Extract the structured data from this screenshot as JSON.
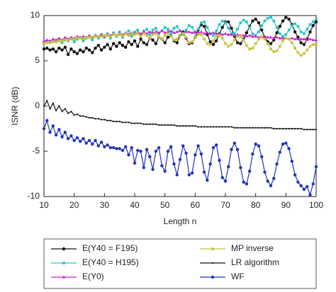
{
  "chart_data": {
    "type": "line",
    "xlabel": "Length n",
    "ylabel": "ISNR (dB)",
    "xlim": [
      10,
      100
    ],
    "ylim": [
      -10,
      10
    ],
    "xticks": [
      10,
      20,
      30,
      40,
      50,
      60,
      70,
      80,
      90,
      100
    ],
    "yticks": [
      -10,
      -5,
      0,
      5,
      10
    ],
    "legend": "bottom",
    "x": [
      10,
      11,
      12,
      13,
      14,
      15,
      16,
      17,
      18,
      19,
      20,
      21,
      22,
      23,
      24,
      25,
      26,
      27,
      28,
      29,
      30,
      31,
      32,
      33,
      34,
      35,
      36,
      37,
      38,
      39,
      40,
      41,
      42,
      43,
      44,
      45,
      46,
      47,
      48,
      49,
      50,
      51,
      52,
      53,
      54,
      55,
      56,
      57,
      58,
      59,
      60,
      61,
      62,
      63,
      64,
      65,
      66,
      67,
      68,
      69,
      70,
      71,
      72,
      73,
      74,
      75,
      76,
      77,
      78,
      79,
      80,
      81,
      82,
      83,
      84,
      85,
      86,
      87,
      88,
      89,
      90,
      91,
      92,
      93,
      94,
      95,
      96,
      97,
      98,
      99,
      100
    ],
    "series": [
      {
        "name": "E(Y40 = F195)",
        "color": "#111111",
        "marker": "circle",
        "values": [
          6.3,
          6.4,
          6.2,
          6.3,
          6.0,
          6.4,
          6.2,
          6.5,
          5.7,
          6.3,
          6.0,
          5.8,
          6.2,
          6.0,
          6.4,
          6.2,
          5.9,
          6.4,
          6.7,
          6.2,
          6.5,
          6.8,
          6.3,
          6.9,
          6.6,
          7.0,
          6.7,
          6.5,
          7.1,
          6.8,
          7.2,
          6.6,
          7.4,
          7.0,
          6.8,
          7.5,
          7.3,
          6.9,
          7.6,
          7.4,
          7.0,
          7.6,
          7.8,
          7.2,
          7.0,
          7.8,
          8.2,
          7.5,
          6.9,
          7.0,
          7.6,
          8.4,
          9.0,
          8.8,
          7.9,
          7.1,
          6.8,
          7.2,
          8.0,
          8.7,
          9.3,
          9.3,
          8.6,
          7.7,
          7.0,
          6.9,
          7.4,
          8.1,
          8.8,
          9.4,
          9.6,
          9.2,
          8.4,
          7.6,
          7.1,
          6.9,
          7.3,
          8.1,
          8.8,
          9.4,
          9.8,
          9.6,
          9.0,
          8.2,
          7.6,
          7.0,
          6.8,
          7.4,
          8.2,
          8.9,
          9.3
        ]
      },
      {
        "name": "E(Y40 = H195)",
        "color": "#22c4c4",
        "marker": "square",
        "values": [
          7.0,
          7.1,
          7.0,
          7.2,
          7.1,
          7.3,
          7.0,
          7.4,
          7.2,
          7.5,
          7.1,
          7.4,
          7.6,
          7.2,
          7.5,
          7.7,
          7.3,
          7.8,
          7.5,
          7.9,
          7.6,
          8.0,
          7.5,
          8.1,
          7.7,
          8.2,
          7.6,
          8.0,
          8.3,
          7.7,
          8.2,
          8.4,
          7.8,
          8.3,
          8.5,
          7.9,
          8.4,
          8.6,
          8.0,
          8.3,
          8.7,
          8.5,
          8.0,
          8.6,
          8.8,
          8.3,
          7.9,
          8.4,
          8.9,
          8.7,
          8.1,
          8.5,
          9.2,
          9.3,
          8.7,
          8.0,
          7.8,
          8.3,
          9.0,
          9.4,
          9.2,
          8.6,
          8.0,
          8.0,
          8.5,
          9.2,
          9.5,
          9.3,
          8.7,
          8.0,
          7.8,
          8.2,
          8.9,
          9.4,
          9.7,
          9.8,
          9.4,
          8.7,
          8.0,
          7.7,
          7.9,
          8.4,
          8.9,
          9.1,
          8.8,
          8.2,
          8.0,
          8.5,
          9.0,
          9.3,
          9.6
        ]
      },
      {
        "name": "E(Y0)",
        "color": "#cc22cc",
        "marker": "triangle",
        "values": [
          7.2,
          7.3,
          7.2,
          7.4,
          7.3,
          7.5,
          7.3,
          7.6,
          7.4,
          7.6,
          7.5,
          7.7,
          7.5,
          7.7,
          7.6,
          7.8,
          7.6,
          7.8,
          7.7,
          7.9,
          7.7,
          7.9,
          7.8,
          8.0,
          7.8,
          8.0,
          7.9,
          8.1,
          7.9,
          8.1,
          8.0,
          8.1,
          8.0,
          8.2,
          8.0,
          8.2,
          8.1,
          8.2,
          8.1,
          8.3,
          8.1,
          8.2,
          8.3,
          8.1,
          8.2,
          8.3,
          8.1,
          8.2,
          8.2,
          8.1,
          8.2,
          8.1,
          8.2,
          8.0,
          8.1,
          8.0,
          8.1,
          8.0,
          8.0,
          7.9,
          8.0,
          7.9,
          7.9,
          7.8,
          7.9,
          7.8,
          7.8,
          7.7,
          7.8,
          7.7,
          7.7,
          7.6,
          7.7,
          7.6,
          7.6,
          7.6,
          7.5,
          7.6,
          7.5,
          7.5,
          7.5,
          7.4,
          7.5,
          7.4,
          7.4,
          7.4,
          7.4,
          7.3,
          7.4,
          7.3,
          7.3
        ]
      },
      {
        "name": "MP inverse",
        "color": "#c8c03a",
        "marker": "square",
        "values": [
          6.9,
          7.0,
          7.0,
          7.1,
          7.1,
          7.2,
          7.2,
          7.3,
          7.3,
          7.4,
          7.4,
          7.5,
          7.5,
          7.5,
          7.6,
          7.6,
          7.6,
          7.7,
          7.7,
          7.7,
          7.8,
          7.8,
          7.7,
          7.9,
          7.8,
          7.9,
          7.8,
          8.0,
          7.8,
          8.0,
          7.9,
          8.0,
          7.7,
          8.0,
          7.8,
          7.5,
          7.9,
          8.0,
          7.6,
          7.4,
          7.8,
          8.0,
          7.7,
          7.3,
          7.4,
          7.8,
          8.0,
          7.6,
          7.0,
          7.1,
          7.6,
          7.9,
          7.9,
          7.4,
          6.9,
          6.8,
          7.2,
          7.7,
          7.8,
          7.5,
          6.9,
          6.6,
          6.8,
          7.3,
          7.7,
          7.7,
          7.3,
          6.7,
          6.3,
          6.4,
          6.9,
          7.4,
          7.6,
          7.4,
          6.9,
          6.3,
          6.0,
          6.1,
          6.6,
          7.2,
          7.5,
          7.4,
          7.0,
          6.4,
          5.9,
          5.6,
          5.8,
          6.2,
          6.6,
          6.8,
          6.8
        ]
      },
      {
        "name": "LR algorithm",
        "color": "#111111",
        "marker": "dot",
        "values": [
          0.0,
          0.6,
          -0.3,
          0.3,
          -0.5,
          0.0,
          -0.6,
          -0.3,
          -0.8,
          -0.6,
          -1.0,
          -0.9,
          -1.1,
          -1.1,
          -1.2,
          -1.3,
          -1.3,
          -1.4,
          -1.4,
          -1.5,
          -1.5,
          -1.6,
          -1.6,
          -1.7,
          -1.7,
          -1.7,
          -1.8,
          -1.8,
          -1.8,
          -1.9,
          -1.9,
          -1.9,
          -1.9,
          -2.0,
          -2.0,
          -2.0,
          -2.0,
          -2.0,
          -2.1,
          -2.1,
          -2.1,
          -2.1,
          -2.1,
          -2.1,
          -2.2,
          -2.2,
          -2.2,
          -2.2,
          -2.2,
          -2.2,
          -2.2,
          -2.3,
          -2.3,
          -2.3,
          -2.3,
          -2.3,
          -2.3,
          -2.3,
          -2.3,
          -2.3,
          -2.3,
          -2.3,
          -2.3,
          -2.4,
          -2.4,
          -2.4,
          -2.4,
          -2.4,
          -2.4,
          -2.4,
          -2.4,
          -2.4,
          -2.4,
          -2.4,
          -2.4,
          -2.4,
          -2.5,
          -2.5,
          -2.5,
          -2.5,
          -2.5,
          -2.5,
          -2.5,
          -2.5,
          -2.5,
          -2.5,
          -2.6,
          -2.6,
          -2.6,
          -2.6,
          -2.6
        ]
      },
      {
        "name": "WF",
        "color": "#2233bb",
        "marker": "circle",
        "values": [
          -2.5,
          -1.6,
          -2.9,
          -2.2,
          -3.2,
          -2.6,
          -3.4,
          -2.9,
          -3.6,
          -3.3,
          -3.8,
          -3.5,
          -3.9,
          -3.6,
          -4.1,
          -3.8,
          -4.2,
          -3.8,
          -4.4,
          -4.0,
          -4.5,
          -4.3,
          -4.6,
          -4.6,
          -4.7,
          -4.7,
          -4.9,
          -4.5,
          -5.4,
          -4.6,
          -6.3,
          -4.9,
          -5.0,
          -6.8,
          -4.8,
          -5.6,
          -7.0,
          -5.0,
          -4.6,
          -6.6,
          -7.2,
          -5.0,
          -4.5,
          -6.4,
          -7.6,
          -5.9,
          -4.4,
          -5.2,
          -7.6,
          -7.4,
          -5.4,
          -4.4,
          -5.3,
          -7.3,
          -8.2,
          -6.4,
          -4.6,
          -4.3,
          -6.0,
          -7.9,
          -8.3,
          -6.7,
          -4.8,
          -4.1,
          -4.8,
          -6.8,
          -8.4,
          -8.6,
          -7.2,
          -5.3,
          -4.2,
          -4.4,
          -5.6,
          -7.3,
          -8.3,
          -8.8,
          -8.0,
          -6.4,
          -5.1,
          -4.2,
          -4.1,
          -4.7,
          -6.1,
          -7.6,
          -8.4,
          -8.8,
          -9.2,
          -8.9,
          -9.8,
          -8.6,
          -6.7
        ]
      }
    ]
  }
}
